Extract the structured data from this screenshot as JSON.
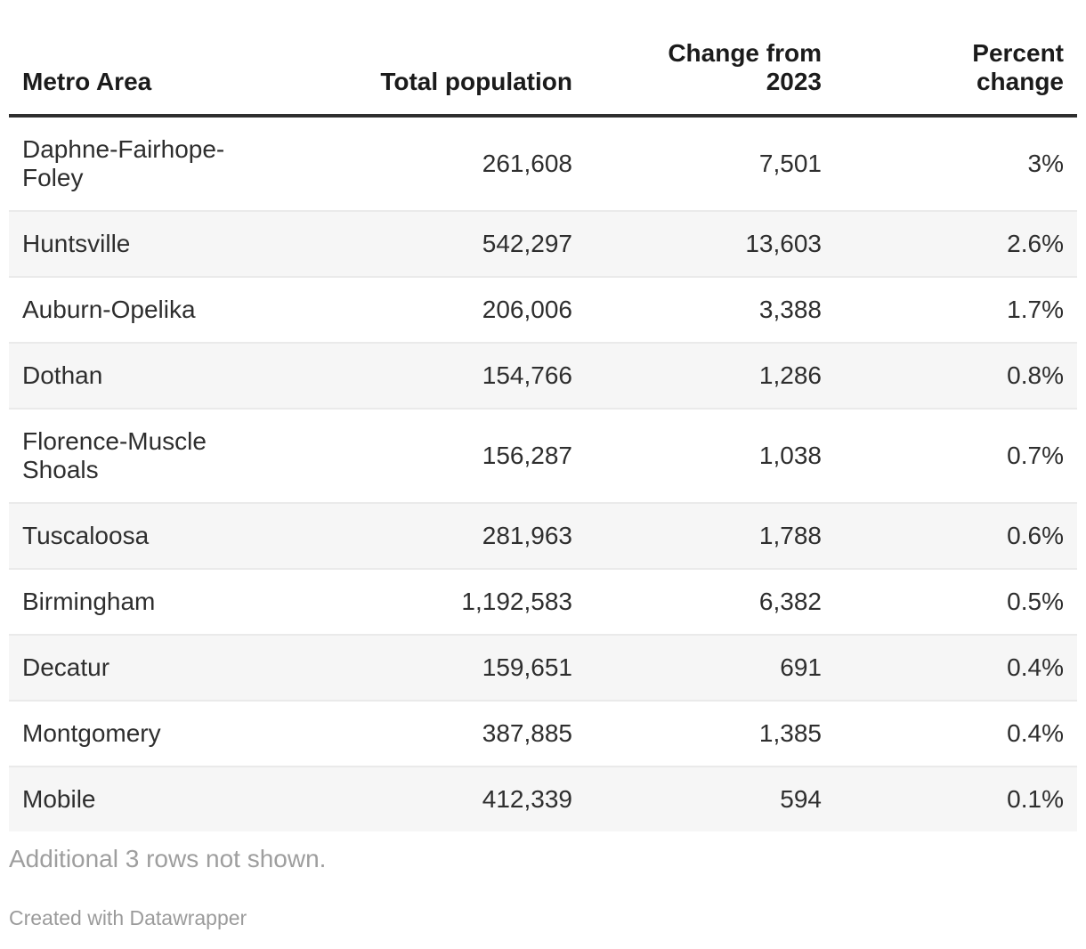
{
  "table": {
    "columns": [
      {
        "label": "Metro Area",
        "align": "left"
      },
      {
        "label": "Total population",
        "align": "right"
      },
      {
        "label": "Change from\n2023",
        "align": "right"
      },
      {
        "label": "Percent\nchange",
        "align": "right"
      }
    ],
    "rows": [
      {
        "metro": "Daphne-Fairhope-Foley",
        "population": "261,608",
        "change": "7,501",
        "percent": "3%"
      },
      {
        "metro": "Huntsville",
        "population": "542,297",
        "change": "13,603",
        "percent": "2.6%"
      },
      {
        "metro": "Auburn-Opelika",
        "population": "206,006",
        "change": "3,388",
        "percent": "1.7%"
      },
      {
        "metro": "Dothan",
        "population": "154,766",
        "change": "1,286",
        "percent": "0.8%"
      },
      {
        "metro": "Florence-Muscle Shoals",
        "population": "156,287",
        "change": "1,038",
        "percent": "0.7%"
      },
      {
        "metro": "Tuscaloosa",
        "population": "281,963",
        "change": "1,788",
        "percent": "0.6%"
      },
      {
        "metro": "Birmingham",
        "population": "1,192,583",
        "change": "6,382",
        "percent": "0.5%"
      },
      {
        "metro": "Decatur",
        "population": "159,651",
        "change": "691",
        "percent": "0.4%"
      },
      {
        "metro": "Montgomery",
        "population": "387,885",
        "change": "1,385",
        "percent": "0.4%"
      },
      {
        "metro": "Mobile",
        "population": "412,339",
        "change": "594",
        "percent": "0.1%"
      }
    ],
    "note": "Additional 3 rows not shown."
  },
  "attribution": "Created with Datawrapper",
  "colors": {
    "header_text": "#1b1b1b",
    "body_text": "#2e2e2e",
    "header_border": "#2e2e2e",
    "row_border": "#eaeaea",
    "stripe_background": "#f6f6f6",
    "muted_text": "#9e9e9e"
  },
  "chart_data": {
    "type": "table",
    "title": "",
    "columns": [
      "Metro Area",
      "Total population",
      "Change from 2023",
      "Percent change"
    ],
    "rows": [
      [
        "Daphne-Fairhope-Foley",
        261608,
        7501,
        "3%"
      ],
      [
        "Huntsville",
        542297,
        13603,
        "2.6%"
      ],
      [
        "Auburn-Opelika",
        206006,
        3388,
        "1.7%"
      ],
      [
        "Dothan",
        154766,
        1286,
        "0.8%"
      ],
      [
        "Florence-Muscle Shoals",
        156287,
        1038,
        "0.7%"
      ],
      [
        "Tuscaloosa",
        281963,
        1788,
        "0.6%"
      ],
      [
        "Birmingham",
        1192583,
        6382,
        "0.5%"
      ],
      [
        "Decatur",
        159651,
        691,
        "0.4%"
      ],
      [
        "Montgomery",
        387885,
        1385,
        "0.4%"
      ],
      [
        "Mobile",
        412339,
        594,
        "0.1%"
      ]
    ],
    "note": "Additional 3 rows not shown.",
    "layout_hints": {
      "striped_rows": "even",
      "numeric_columns_right_aligned": true,
      "thick_rule_below_header": true
    }
  }
}
